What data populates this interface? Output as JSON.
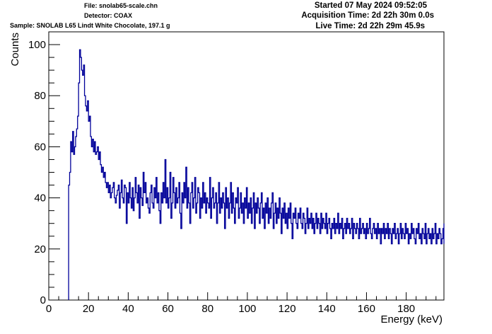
{
  "header": {
    "file": "File: snolab65-scale.chn",
    "detector": "Detector: COAX",
    "sample": "Sample: SNOLAB L65 Lindt White Chocolate, 197.1 g",
    "started": "Started 07 May 2024 09:52:05",
    "acquisition_time": "Acquisition Time: 2d 22h 30m 0.0s",
    "live_time": "Live Time: 2d 22h 29m 45.9s"
  },
  "chart_data": {
    "type": "line",
    "title": "",
    "xlabel": "Energy (keV)",
    "ylabel": "Counts",
    "xlim": [
      0,
      199
    ],
    "ylim": [
      0,
      105
    ],
    "x_ticks": [
      0,
      20,
      40,
      60,
      80,
      100,
      120,
      140,
      160,
      180
    ],
    "y_ticks": [
      0,
      20,
      40,
      60,
      80,
      100
    ],
    "grid": false,
    "legend": "none",
    "line_color": "#000099",
    "bin_width_keV": 0.5,
    "x_start": 10,
    "counts": [
      45,
      50,
      62,
      58,
      66,
      57,
      60,
      64,
      67,
      72,
      85,
      98,
      95,
      90,
      88,
      92,
      80,
      76,
      74,
      78,
      70,
      72,
      64,
      60,
      63,
      58,
      62,
      57,
      58,
      60,
      55,
      58,
      53,
      50,
      52,
      48,
      50,
      46,
      44,
      46,
      42,
      45,
      40,
      42,
      44,
      46,
      40,
      38,
      41,
      43,
      45,
      36,
      42,
      47,
      40,
      38,
      45,
      44,
      30,
      42,
      38,
      46,
      40,
      36,
      44,
      35,
      40,
      48,
      42,
      38,
      45,
      32,
      44,
      40,
      37,
      50,
      42,
      46,
      38,
      40,
      36,
      34,
      42,
      45,
      38,
      36,
      44,
      40,
      48,
      38,
      42,
      35,
      30,
      42,
      38,
      46,
      40,
      55,
      38,
      44,
      36,
      40,
      50,
      32,
      38,
      48,
      42,
      36,
      44,
      38,
      40,
      46,
      34,
      28,
      42,
      38,
      46,
      40,
      52,
      36,
      44,
      38,
      30,
      42,
      46,
      36,
      40,
      48,
      34,
      38,
      44,
      42,
      32,
      40,
      36,
      46,
      38,
      42,
      34,
      40,
      38,
      36,
      48,
      32,
      40,
      44,
      36,
      38,
      42,
      30,
      38,
      46,
      34,
      40,
      36,
      42,
      38,
      28,
      44,
      36,
      40,
      32,
      38,
      46,
      34,
      42,
      36,
      30,
      40,
      38,
      44,
      32,
      36,
      42,
      34,
      38,
      30,
      40,
      36,
      44,
      32,
      38,
      34,
      40,
      30,
      36,
      42,
      28,
      38,
      34,
      40,
      36,
      30,
      38,
      42,
      32,
      36,
      28,
      38,
      34,
      40,
      30,
      36,
      32,
      38,
      42,
      28,
      34,
      38,
      30,
      36,
      32,
      40,
      34,
      26,
      36,
      32,
      38,
      30,
      34,
      28,
      36,
      32,
      38,
      30,
      24,
      34,
      32,
      36,
      30,
      28,
      34,
      32,
      36,
      30,
      28,
      34,
      32,
      26,
      30,
      36,
      28,
      32,
      30,
      34,
      28,
      32,
      26,
      30,
      34,
      28,
      32,
      30,
      26,
      34,
      28,
      32,
      30,
      28,
      34,
      26,
      30,
      32,
      28,
      24,
      30,
      28,
      32,
      26,
      30,
      28,
      34,
      26,
      30,
      28,
      32,
      24,
      28,
      30,
      26,
      32,
      28,
      30,
      26,
      28,
      32,
      24,
      30,
      28,
      26,
      30,
      28,
      24,
      32,
      26,
      28,
      30,
      26,
      28,
      24,
      30,
      26,
      28,
      32,
      26,
      24,
      28,
      30,
      26,
      28,
      24,
      30,
      26,
      28,
      22,
      28,
      26,
      30,
      24,
      28,
      26,
      30,
      24,
      28,
      26,
      22,
      28,
      26,
      30,
      24,
      26,
      28,
      22,
      26,
      30,
      24,
      28,
      26,
      24,
      30,
      26,
      28,
      22,
      26,
      24,
      30,
      26,
      28,
      24,
      22,
      28,
      26,
      30,
      24,
      26,
      22,
      28,
      26,
      24,
      30,
      22,
      26,
      28,
      24,
      26,
      22,
      28,
      24,
      26,
      30,
      22,
      26,
      24,
      28,
      26,
      22,
      24,
      28,
      26,
      30,
      24,
      22,
      26,
      28,
      24,
      26,
      22,
      28,
      24,
      30
    ]
  }
}
